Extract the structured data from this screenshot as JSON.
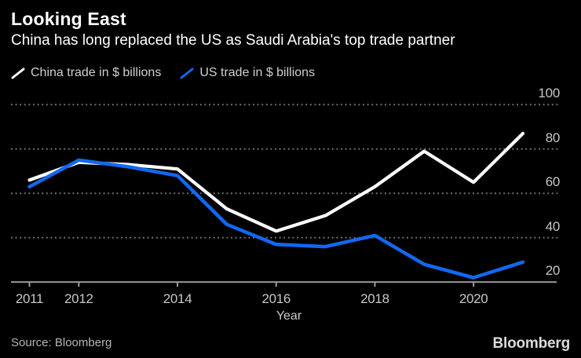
{
  "title": "Looking East",
  "subtitle": "China has long replaced the US as Saudi Arabia's top trade partner",
  "legend": [
    {
      "label": "China trade in $ billions",
      "color": "#ffffff"
    },
    {
      "label": "US trade in $ billions",
      "color": "#1268f0"
    }
  ],
  "footer": {
    "source": "Source: Bloomberg",
    "logo": "Bloomberg"
  },
  "colors": {
    "background": "#000000",
    "china_line": "#ffffff",
    "us_line": "#1268f0",
    "grid": "#6f6f6f",
    "axis": "#9c9c9c",
    "tick_text": "#c6c6c6"
  },
  "chart_data": {
    "type": "line",
    "title": "Looking East",
    "subtitle": "China has long replaced the US as Saudi Arabia's top trade partner",
    "xlabel": "Year",
    "ylabel": "",
    "x": [
      2011,
      2012,
      2013,
      2014,
      2015,
      2016,
      2017,
      2018,
      2019,
      2020,
      2021
    ],
    "series": [
      {
        "name": "China trade in $ billions",
        "color": "#ffffff",
        "values": [
          66,
          74,
          73,
          71,
          53,
          43,
          50,
          63,
          79,
          65,
          87
        ]
      },
      {
        "name": "US trade in $ billions",
        "color": "#1268f0",
        "values": [
          63,
          75,
          72,
          68,
          46,
          37,
          36,
          41,
          28,
          22,
          29
        ]
      }
    ],
    "x_tick_labels": [
      2011,
      2012,
      2014,
      2016,
      2018,
      2020
    ],
    "y_ticks": [
      20,
      40,
      60,
      80,
      100
    ],
    "ylim": [
      20,
      100
    ],
    "grid": "horizontal-dotted",
    "legend_position": "top-left",
    "y_axis_side": "right"
  }
}
